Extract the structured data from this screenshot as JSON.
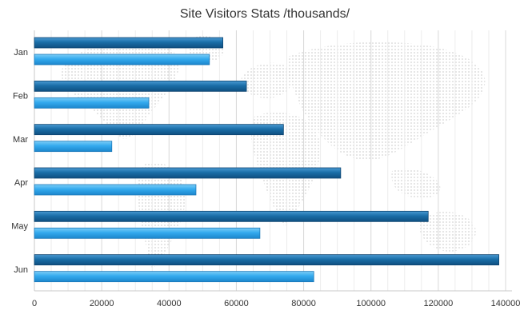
{
  "colors": {
    "series_dark": "#1a6ea8",
    "series_light": "#33aaee",
    "axis": "#333333",
    "grid": "#e2e2e2",
    "map_dots": "#cccccc"
  },
  "chart_data": {
    "type": "bar",
    "orientation": "horizontal",
    "title": "Site Visitors Stats /thousands/",
    "xlabel": "",
    "ylabel": "",
    "categories": [
      "Jan",
      "Feb",
      "Mar",
      "Apr",
      "May",
      "Jun"
    ],
    "xlim": [
      0,
      140000
    ],
    "x_ticks": [
      0,
      20000,
      40000,
      60000,
      80000,
      100000,
      120000,
      140000
    ],
    "x_tick_labels": [
      "0",
      "20000",
      "40000",
      "60000",
      "80000",
      "100000",
      "120000",
      "140000"
    ],
    "grid": true,
    "legend": "none",
    "background": "dotted world map",
    "series": [
      {
        "values": [
          56000,
          63000,
          74000,
          91000,
          117000,
          138000
        ],
        "color": "#1a6ea8"
      },
      {
        "values": [
          52000,
          34000,
          23000,
          48000,
          67000,
          83000
        ],
        "color": "#33aaee"
      }
    ]
  }
}
